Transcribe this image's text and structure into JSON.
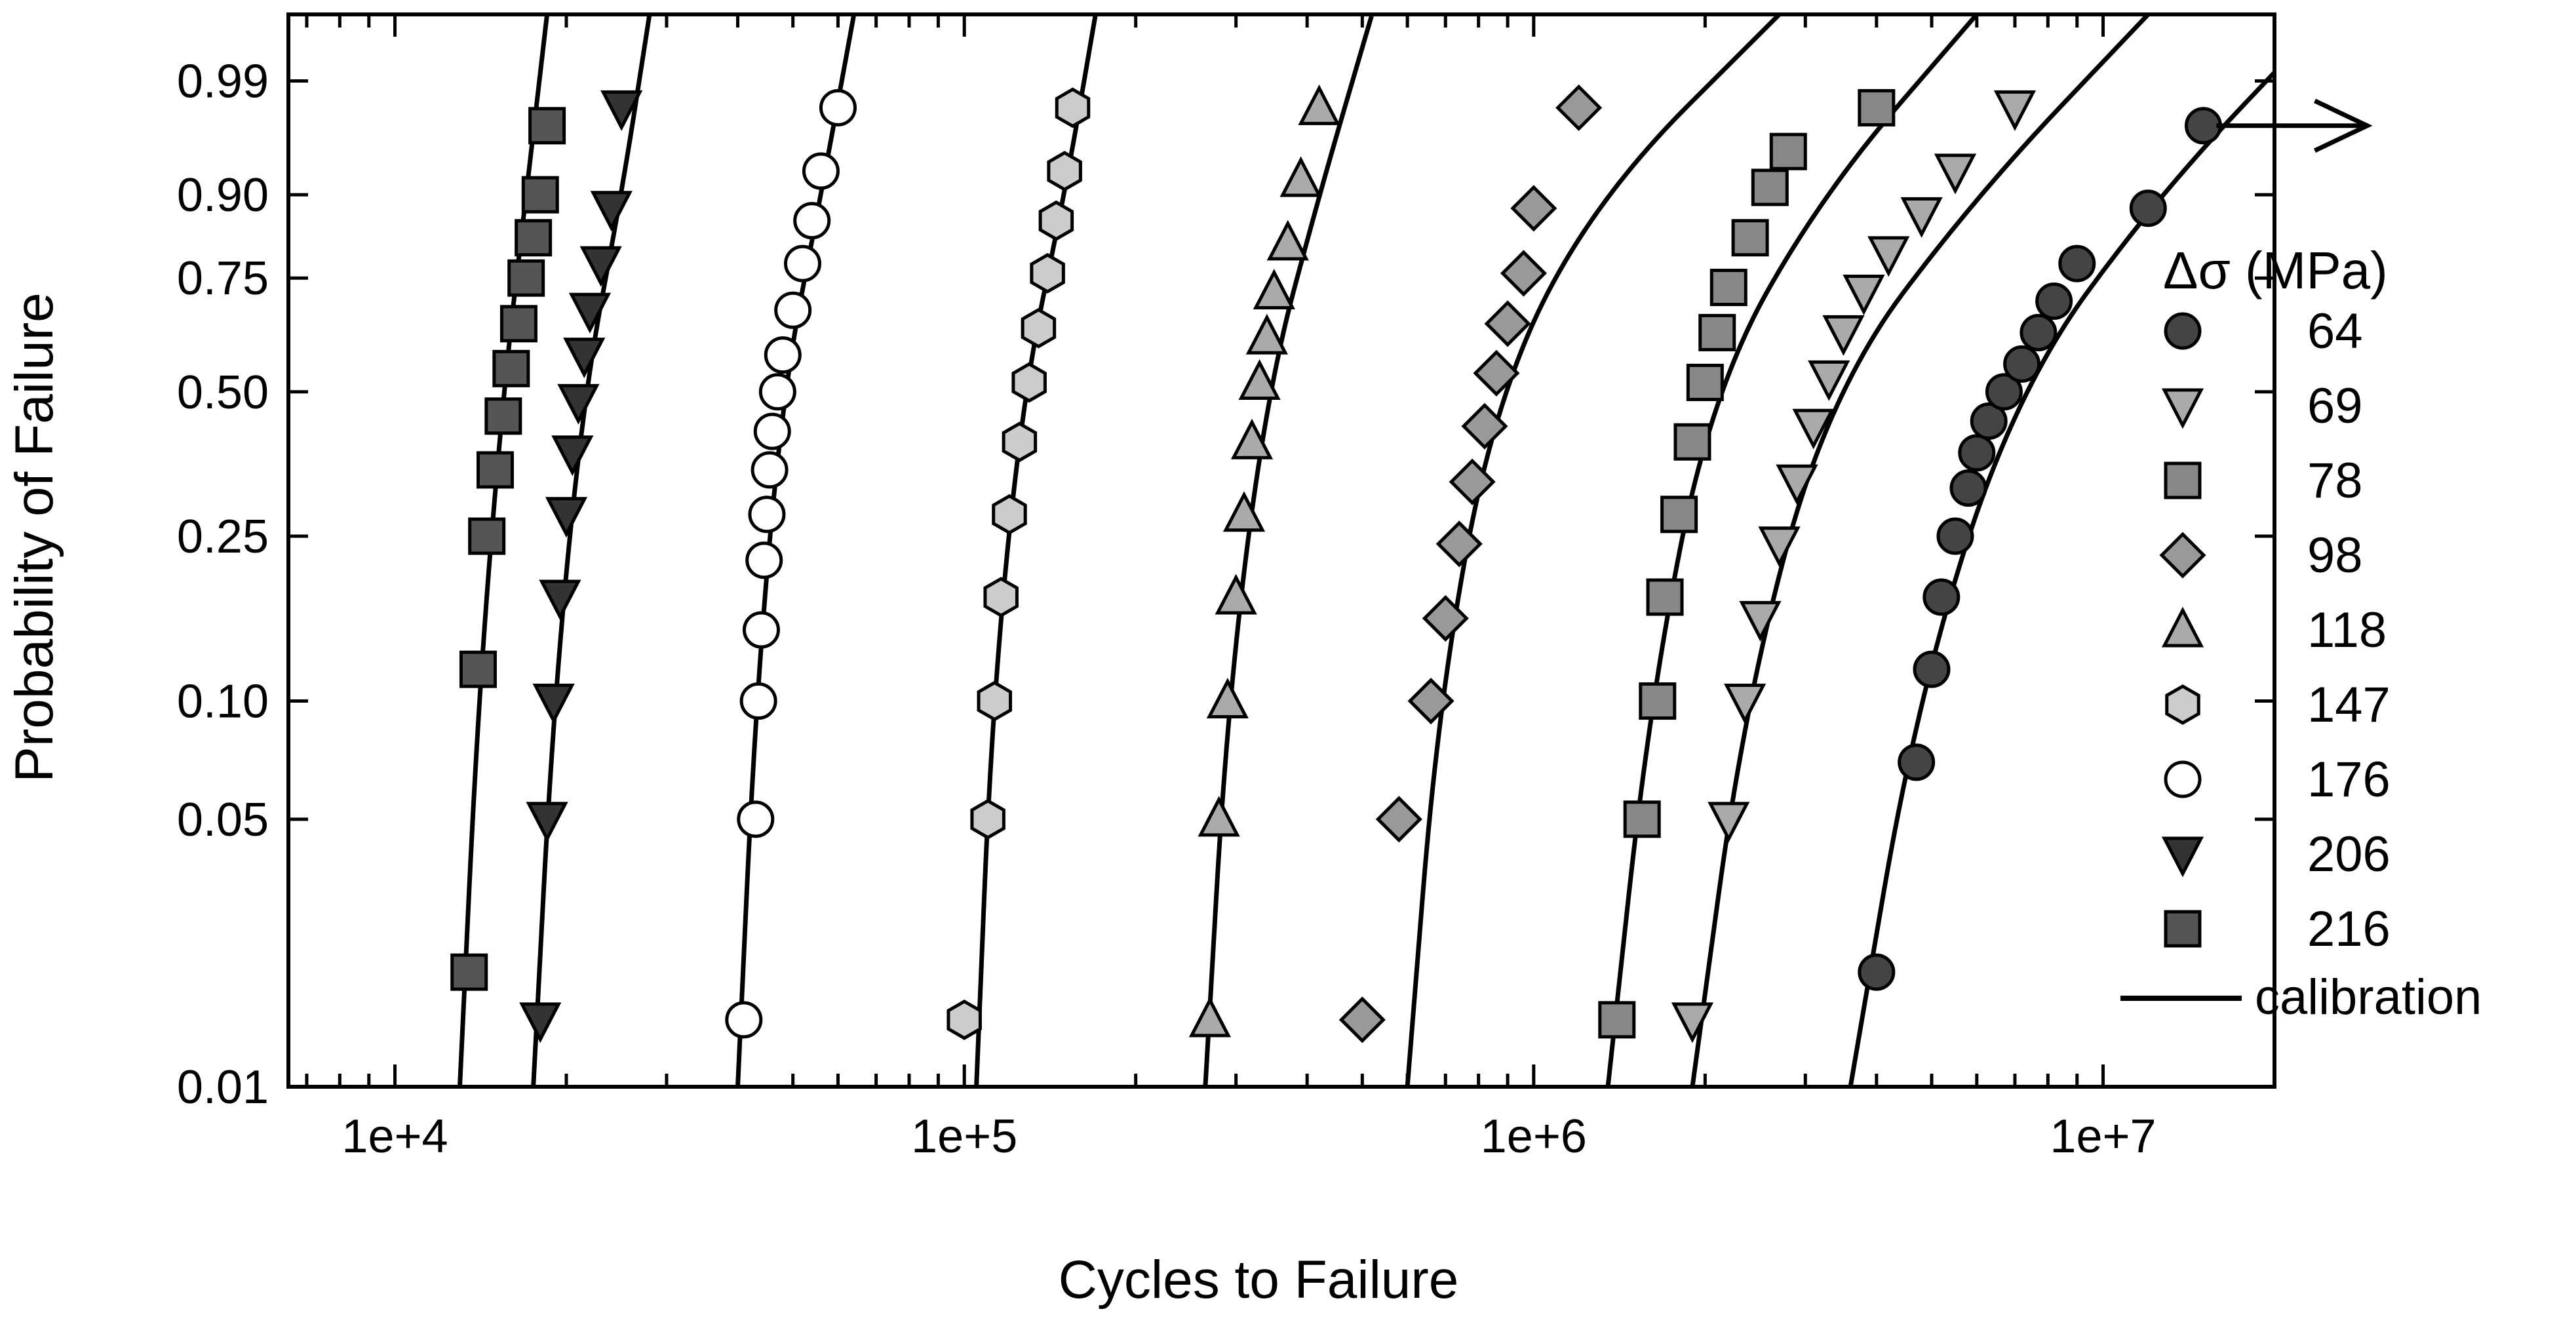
{
  "chart_data": {
    "type": "scatter",
    "xlabel": "Cycles to Failure",
    "ylabel": "Probability of Failure",
    "x_scale": "log",
    "y_scale": "weibull-probability",
    "xlim": [
      6500,
      20000000
    ],
    "ylim": [
      0.01,
      0.999
    ],
    "x_ticks": [
      {
        "value": 10000,
        "label": "1e+4"
      },
      {
        "value": 100000,
        "label": "1e+5"
      },
      {
        "value": 1000000,
        "label": "1e+6"
      },
      {
        "value": 10000000,
        "label": "1e+7"
      }
    ],
    "y_ticks": [
      {
        "value": 0.01,
        "label": "0.01"
      },
      {
        "value": 0.05,
        "label": "0.05"
      },
      {
        "value": 0.1,
        "label": "0.10"
      },
      {
        "value": 0.25,
        "label": "0.25"
      },
      {
        "value": 0.5,
        "label": "0.50"
      },
      {
        "value": 0.75,
        "label": "0.75"
      },
      {
        "value": 0.9,
        "label": "0.90"
      },
      {
        "value": 0.99,
        "label": "0.99"
      }
    ],
    "grid": false,
    "legend": {
      "title": "Δσ (MPa)",
      "position": "right",
      "calibration_label": "calibration"
    },
    "series": [
      {
        "name": "216",
        "marker": "square",
        "fill": "#555555",
        "x": [
          13500,
          14000,
          14500,
          15000,
          15500,
          16000,
          16500,
          17000,
          17500,
          18000,
          18500
        ],
        "y": [
          0.02,
          0.12,
          0.25,
          0.35,
          0.45,
          0.55,
          0.65,
          0.75,
          0.83,
          0.9,
          0.97
        ],
        "fit_x": [
          13000,
          14000,
          15500,
          17000,
          18500
        ],
        "fit_y": [
          0.01,
          0.1,
          0.5,
          0.9,
          0.999
        ]
      },
      {
        "name": "206",
        "marker": "triangle-down",
        "fill": "#333333",
        "x": [
          18000,
          18500,
          19000,
          19500,
          20000,
          20500,
          21000,
          21500,
          22000,
          23000,
          24000,
          25000
        ],
        "y": [
          0.015,
          0.05,
          0.1,
          0.18,
          0.28,
          0.38,
          0.48,
          0.58,
          0.68,
          0.78,
          0.88,
          0.98
        ],
        "fit_x": [
          17500,
          19000,
          21500,
          25000,
          28000
        ],
        "fit_y": [
          0.01,
          0.1,
          0.5,
          0.9,
          0.999
        ]
      },
      {
        "name": "176",
        "marker": "circle",
        "fill": "#ffffff",
        "x": [
          41000,
          43000,
          43500,
          44000,
          44500,
          45000,
          45500,
          46000,
          47000,
          48000,
          50000,
          52000,
          54000,
          56000,
          60000
        ],
        "y": [
          0.015,
          0.05,
          0.1,
          0.15,
          0.22,
          0.28,
          0.35,
          0.42,
          0.5,
          0.58,
          0.68,
          0.78,
          0.86,
          0.93,
          0.98
        ],
        "fit_x": [
          40000,
          43000,
          48000,
          56000,
          64000
        ],
        "fit_y": [
          0.01,
          0.1,
          0.5,
          0.9,
          0.999
        ]
      },
      {
        "name": "147",
        "marker": "hexagon",
        "fill": "#cccccc",
        "x": [
          100000,
          110000,
          113000,
          116000,
          120000,
          125000,
          130000,
          135000,
          140000,
          145000,
          150000,
          155000
        ],
        "y": [
          0.015,
          0.05,
          0.1,
          0.18,
          0.28,
          0.4,
          0.52,
          0.64,
          0.76,
          0.86,
          0.93,
          0.98
        ],
        "fit_x": [
          105000,
          112000,
          127000,
          150000,
          170000
        ],
        "fit_y": [
          0.01,
          0.1,
          0.5,
          0.9,
          0.999
        ]
      },
      {
        "name": "118",
        "marker": "triangle-up",
        "fill": "#aaaaaa",
        "x": [
          270000,
          280000,
          290000,
          300000,
          310000,
          320000,
          330000,
          340000,
          350000,
          370000,
          390000,
          420000
        ],
        "y": [
          0.015,
          0.05,
          0.1,
          0.18,
          0.28,
          0.4,
          0.52,
          0.62,
          0.72,
          0.82,
          0.92,
          0.98
        ],
        "fit_x": [
          265000,
          290000,
          340000,
          420000,
          520000
        ],
        "fit_y": [
          0.01,
          0.1,
          0.5,
          0.9,
          0.999
        ]
      },
      {
        "name": "98",
        "marker": "diamond",
        "fill": "#999999",
        "x": [
          500000,
          580000,
          660000,
          700000,
          740000,
          780000,
          820000,
          860000,
          900000,
          960000,
          1000000,
          1200000
        ],
        "y": [
          0.015,
          0.05,
          0.1,
          0.16,
          0.24,
          0.33,
          0.43,
          0.54,
          0.65,
          0.76,
          0.88,
          0.98
        ],
        "fit_x": [
          600000,
          680000,
          860000,
          1300000,
          2700000
        ],
        "fit_y": [
          0.01,
          0.1,
          0.5,
          0.9,
          0.999
        ]
      },
      {
        "name": "78",
        "marker": "square",
        "fill": "#888888",
        "x": [
          1400000,
          1550000,
          1650000,
          1700000,
          1800000,
          1900000,
          2000000,
          2100000,
          2200000,
          2400000,
          2600000,
          2800000,
          4000000
        ],
        "y": [
          0.015,
          0.05,
          0.1,
          0.18,
          0.28,
          0.4,
          0.52,
          0.63,
          0.73,
          0.83,
          0.91,
          0.95,
          0.98
        ],
        "fit_x": [
          1350000,
          1600000,
          2050000,
          3200000,
          6000000
        ],
        "fit_y": [
          0.01,
          0.1,
          0.5,
          0.9,
          0.999
        ]
      },
      {
        "name": "69",
        "marker": "triangle-down",
        "fill": "#aaaaaa",
        "x": [
          1900000,
          2200000,
          2350000,
          2500000,
          2700000,
          2900000,
          3100000,
          3300000,
          3500000,
          3800000,
          4200000,
          4800000,
          5500000,
          7000000
        ],
        "y": [
          0.015,
          0.05,
          0.1,
          0.16,
          0.24,
          0.33,
          0.43,
          0.53,
          0.63,
          0.72,
          0.8,
          0.87,
          0.93,
          0.98
        ],
        "fit_x": [
          1900000,
          2350000,
          3300000,
          6000000,
          12000000
        ],
        "fit_y": [
          0.01,
          0.1,
          0.5,
          0.9,
          0.999
        ]
      },
      {
        "name": "64",
        "marker": "circle",
        "fill": "#444444",
        "x": [
          4000000,
          4700000,
          5000000,
          5200000,
          5500000,
          5800000,
          6000000,
          6300000,
          6700000,
          7200000,
          7700000,
          8200000,
          9000000,
          12000000,
          15000000
        ],
        "y": [
          0.02,
          0.07,
          0.12,
          0.18,
          0.25,
          0.32,
          0.38,
          0.44,
          0.5,
          0.56,
          0.63,
          0.7,
          0.78,
          0.88,
          0.97
        ],
        "fit_x": [
          3600000,
          4700000,
          7000000,
          12500000,
          25000000
        ],
        "fit_y": [
          0.01,
          0.1,
          0.5,
          0.9,
          0.999
        ]
      }
    ],
    "annotations": [
      {
        "type": "arrow",
        "description": "runout",
        "from_x": 15000000,
        "y": 0.97
      }
    ]
  }
}
